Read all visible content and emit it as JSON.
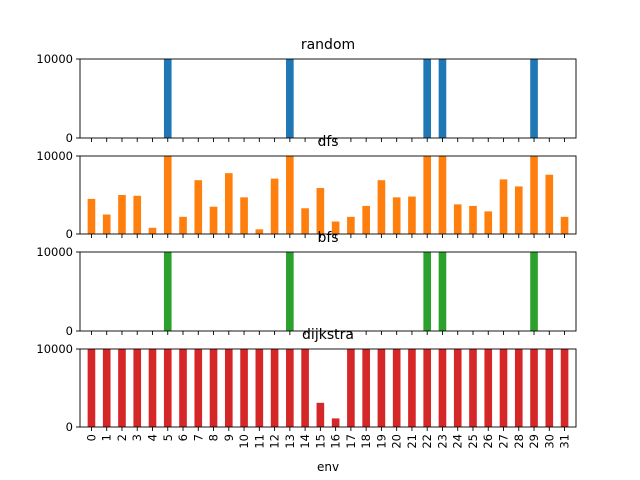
{
  "chart_data": {
    "type": "bar",
    "layout": "stacked-subplots",
    "xlabel": "env",
    "categories": [
      "0",
      "1",
      "2",
      "3",
      "4",
      "5",
      "6",
      "7",
      "8",
      "9",
      "10",
      "11",
      "12",
      "13",
      "14",
      "15",
      "16",
      "17",
      "18",
      "19",
      "20",
      "21",
      "22",
      "23",
      "24",
      "25",
      "26",
      "27",
      "28",
      "29",
      "30",
      "31"
    ],
    "ylim": [
      0,
      10000
    ],
    "yticks": [
      0,
      10000
    ],
    "series": [
      {
        "name": "random",
        "color": "#1f77b4",
        "values": [
          20,
          20,
          20,
          20,
          20,
          10000,
          0,
          0,
          20,
          20,
          0,
          0,
          20,
          10000,
          20,
          0,
          0,
          20,
          0,
          20,
          0,
          0,
          10000,
          10000,
          20,
          0,
          20,
          0,
          0,
          10000,
          20,
          0
        ]
      },
      {
        "name": "dfs",
        "color": "#ff7f0e",
        "values": [
          4500,
          2500,
          5000,
          4900,
          800,
          10000,
          2200,
          6900,
          3500,
          7800,
          4700,
          600,
          7100,
          10000,
          3300,
          5900,
          1600,
          2200,
          3600,
          6900,
          4700,
          4800,
          10000,
          10000,
          3800,
          3600,
          2900,
          7000,
          6100,
          10000,
          7600,
          2200
        ]
      },
      {
        "name": "bfs",
        "color": "#2ca02c",
        "values": [
          20,
          20,
          20,
          20,
          20,
          10000,
          20,
          0,
          20,
          50,
          20,
          0,
          20,
          10000,
          0,
          0,
          0,
          20,
          20,
          20,
          0,
          0,
          10000,
          10000,
          20,
          0,
          20,
          0,
          0,
          10000,
          20,
          20
        ]
      },
      {
        "name": "dijkstra",
        "color": "#d62728",
        "values": [
          10000,
          10000,
          10000,
          10000,
          10000,
          10000,
          10000,
          10000,
          10000,
          10000,
          10000,
          10000,
          10000,
          10000,
          10000,
          3100,
          1100,
          10000,
          10000,
          10000,
          10000,
          10000,
          10000,
          10000,
          10000,
          10000,
          10000,
          10000,
          10000,
          10000,
          10000,
          10000
        ]
      }
    ]
  }
}
